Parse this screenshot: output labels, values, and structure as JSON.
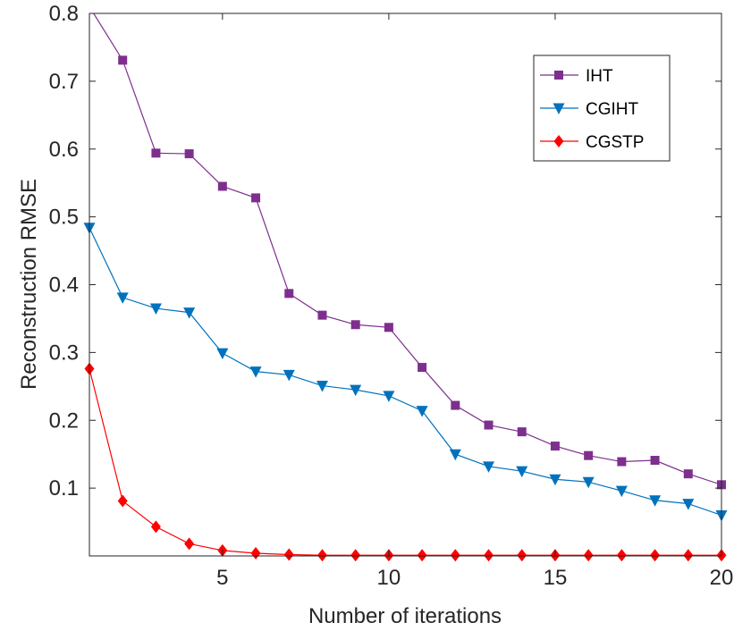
{
  "chart_data": {
    "type": "line",
    "title": "",
    "xlabel": "Number of iterations",
    "ylabel": "Reconstruction RMSE",
    "xlim": [
      1,
      20
    ],
    "ylim": [
      0.0,
      0.8
    ],
    "xticks": [
      5,
      10,
      15,
      20
    ],
    "yticks": [
      0.1,
      0.2,
      0.3,
      0.4,
      0.5,
      0.6,
      0.7,
      0.8
    ],
    "grid": false,
    "legend_position": "top-right",
    "x": [
      1,
      2,
      3,
      4,
      5,
      6,
      7,
      8,
      9,
      10,
      11,
      12,
      13,
      14,
      15,
      16,
      17,
      18,
      19,
      20
    ],
    "series": [
      {
        "name": "IHT",
        "color": "#7E2F8E",
        "marker": "square",
        "values": [
          0.81,
          0.731,
          0.594,
          0.593,
          0.545,
          0.528,
          0.387,
          0.355,
          0.341,
          0.337,
          0.278,
          0.222,
          0.193,
          0.183,
          0.162,
          0.148,
          0.139,
          0.141,
          0.121,
          0.105
        ]
      },
      {
        "name": "CGIHT",
        "color": "#0072BD",
        "marker": "triangle-down",
        "values": [
          0.484,
          0.381,
          0.365,
          0.359,
          0.299,
          0.272,
          0.267,
          0.251,
          0.245,
          0.236,
          0.214,
          0.15,
          0.132,
          0.125,
          0.113,
          0.109,
          0.096,
          0.082,
          0.077,
          0.06
        ]
      },
      {
        "name": "CGSTP",
        "color": "#FF0000",
        "marker": "diamond",
        "values": [
          0.276,
          0.081,
          0.043,
          0.018,
          0.008,
          0.004,
          0.002,
          0.001,
          0.001,
          0.001,
          0.001,
          0.001,
          0.001,
          0.001,
          0.001,
          0.001,
          0.001,
          0.001,
          0.001,
          0.001
        ]
      }
    ]
  }
}
